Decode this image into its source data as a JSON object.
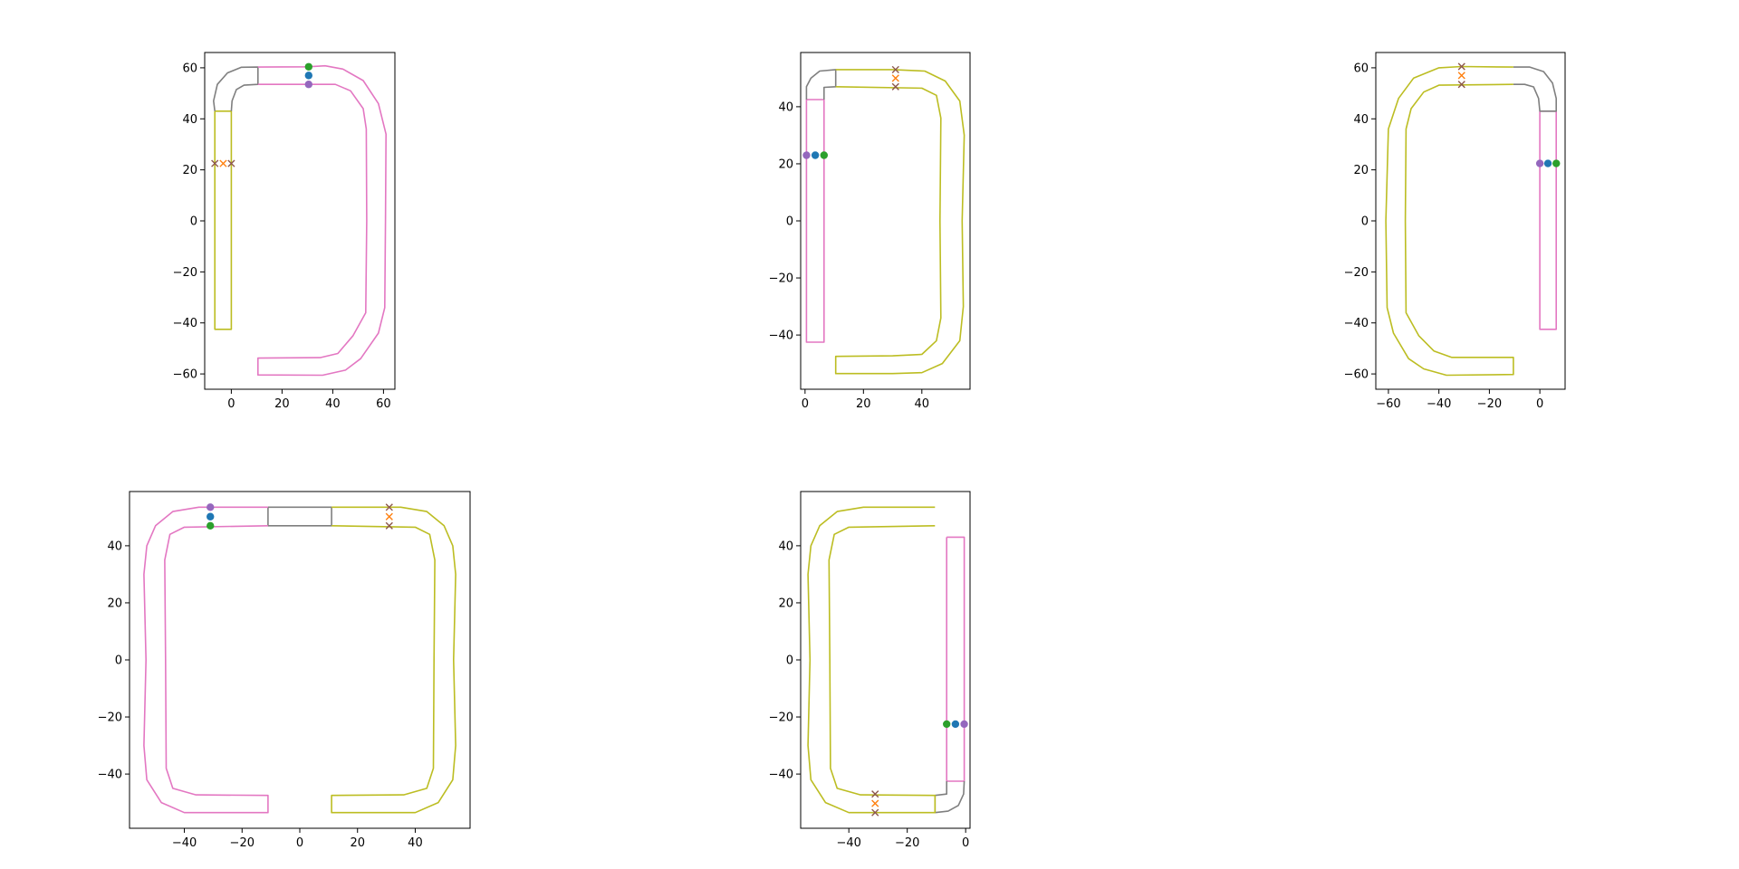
{
  "figure": {
    "colors": {
      "pink": "#e377c2",
      "olive": "#bcbd22",
      "gray": "#7f7f7f",
      "blue": "#1f77b4",
      "green": "#2ca02c",
      "purple": "#9467bd",
      "orange": "#ff7f0e",
      "brown": "#8c564b",
      "axes": "#000000",
      "background": "#ffffff"
    }
  },
  "chart_data": [
    {
      "type": "line",
      "xlim": [
        -10.5,
        64.5
      ],
      "ylim": [
        -66,
        66
      ],
      "xticks": [
        0,
        20,
        40,
        60
      ],
      "yticks": [
        -60,
        -40,
        -20,
        0,
        20,
        40,
        60
      ],
      "grid": false,
      "shapes": [
        {
          "color": "olive",
          "points": [
            [
              -6.5,
              43
            ],
            [
              0,
              43
            ],
            [
              0,
              -42.5
            ],
            [
              -6.5,
              -42.5
            ],
            [
              -6.5,
              43
            ]
          ]
        },
        {
          "color": "gray",
          "points": [
            [
              -6.5,
              43
            ],
            [
              -7,
              47
            ],
            [
              -5.5,
              53.5
            ],
            [
              -1.5,
              58
            ],
            [
              4,
              60.2
            ],
            [
              10.5,
              60.3
            ],
            [
              10.5,
              53.5
            ],
            [
              5,
              53.2
            ],
            [
              2,
              51.5
            ],
            [
              0.3,
              47
            ],
            [
              0,
              43
            ]
          ]
        },
        {
          "color": "pink",
          "points": [
            [
              10.5,
              60.3
            ],
            [
              30,
              60.4
            ],
            [
              37,
              60.8
            ],
            [
              44,
              59.5
            ],
            [
              52,
              55
            ],
            [
              58,
              46
            ],
            [
              61,
              34
            ],
            [
              60.8,
              0
            ],
            [
              60.5,
              -34
            ],
            [
              58,
              -44
            ],
            [
              51,
              -54
            ],
            [
              45,
              -58.5
            ],
            [
              36,
              -60.5
            ],
            [
              10.5,
              -60.4
            ],
            [
              10.5,
              -53.8
            ],
            [
              35,
              -53.6
            ],
            [
              42,
              -52
            ],
            [
              48,
              -45
            ],
            [
              53,
              -36
            ],
            [
              53.4,
              0
            ],
            [
              53.2,
              36
            ],
            [
              52,
              44
            ],
            [
              47,
              51
            ],
            [
              41,
              53.5
            ],
            [
              10.5,
              53.5
            ]
          ]
        }
      ],
      "markers": [
        {
          "x": 30.5,
          "y": 60.4,
          "symbol": "o",
          "color": "green"
        },
        {
          "x": 30.5,
          "y": 57,
          "symbol": "o",
          "color": "blue"
        },
        {
          "x": 30.5,
          "y": 53.5,
          "symbol": "o",
          "color": "purple"
        },
        {
          "x": -6.5,
          "y": 22.5,
          "symbol": "x",
          "color": "brown"
        },
        {
          "x": -3.2,
          "y": 22.5,
          "symbol": "x",
          "color": "orange"
        },
        {
          "x": 0,
          "y": 22.5,
          "symbol": "x",
          "color": "brown"
        }
      ]
    },
    {
      "type": "line",
      "xlim": [
        -1.5,
        56.5
      ],
      "ylim": [
        -59,
        59
      ],
      "xticks": [
        0,
        20,
        40
      ],
      "yticks": [
        -40,
        -20,
        0,
        20,
        40
      ],
      "grid": false,
      "shapes": [
        {
          "color": "pink",
          "points": [
            [
              0.5,
              42.5
            ],
            [
              6.5,
              42.5
            ],
            [
              6.5,
              -42.5
            ],
            [
              0.5,
              -42.5
            ],
            [
              0.5,
              42.5
            ]
          ]
        },
        {
          "color": "gray",
          "points": [
            [
              0.5,
              42.5
            ],
            [
              0.5,
              47
            ],
            [
              2,
              50
            ],
            [
              5,
              52.5
            ],
            [
              10.5,
              53
            ],
            [
              10.5,
              47
            ],
            [
              6.5,
              46.8
            ],
            [
              6.5,
              42.5
            ]
          ]
        },
        {
          "color": "olive",
          "points": [
            [
              10.5,
              53
            ],
            [
              30,
              53
            ],
            [
              41,
              52.5
            ],
            [
              48,
              49
            ],
            [
              53,
              42
            ],
            [
              54.5,
              30
            ],
            [
              53.8,
              0
            ],
            [
              54.2,
              -30
            ],
            [
              53,
              -42
            ],
            [
              47,
              -50
            ],
            [
              40,
              -53.2
            ],
            [
              30,
              -53.5
            ],
            [
              10.5,
              -53.5
            ],
            [
              10.5,
              -47.5
            ],
            [
              30,
              -47.3
            ],
            [
              40,
              -46.8
            ],
            [
              45,
              -42
            ],
            [
              46.5,
              -34
            ],
            [
              46.2,
              0
            ],
            [
              46.5,
              36
            ],
            [
              45,
              44
            ],
            [
              40,
              46.5
            ],
            [
              10.5,
              47
            ]
          ]
        }
      ],
      "markers": [
        {
          "x": 0.5,
          "y": 23,
          "symbol": "o",
          "color": "purple"
        },
        {
          "x": 3.5,
          "y": 23,
          "symbol": "o",
          "color": "blue"
        },
        {
          "x": 6.5,
          "y": 23,
          "symbol": "o",
          "color": "green"
        },
        {
          "x": 31,
          "y": 53,
          "symbol": "x",
          "color": "brown"
        },
        {
          "x": 31,
          "y": 50,
          "symbol": "x",
          "color": "orange"
        },
        {
          "x": 31,
          "y": 47,
          "symbol": "x",
          "color": "brown"
        }
      ]
    },
    {
      "type": "line",
      "xlim": [
        -65,
        10
      ],
      "ylim": [
        -66,
        66
      ],
      "xticks": [
        -60,
        -40,
        -20,
        0
      ],
      "yticks": [
        -60,
        -40,
        -20,
        0,
        20,
        40,
        60
      ],
      "grid": false,
      "shapes": [
        {
          "color": "pink",
          "points": [
            [
              0,
              43
            ],
            [
              6.5,
              43
            ],
            [
              6.5,
              -42.5
            ],
            [
              0,
              -42.5
            ],
            [
              0,
              43
            ]
          ]
        },
        {
          "color": "gray",
          "points": [
            [
              -10.5,
              60.3
            ],
            [
              -4,
              60.3
            ],
            [
              1.5,
              58.5
            ],
            [
              5,
              54
            ],
            [
              6.5,
              48
            ],
            [
              6.5,
              43
            ],
            [
              0,
              43
            ],
            [
              -0.5,
              48
            ],
            [
              -2.5,
              52.5
            ],
            [
              -6,
              53.5
            ],
            [
              -10.5,
              53.5
            ]
          ]
        },
        {
          "color": "olive",
          "points": [
            [
              -10.5,
              60.3
            ],
            [
              -31,
              60.5
            ],
            [
              -40,
              60
            ],
            [
              -50,
              56
            ],
            [
              -56,
              48
            ],
            [
              -60,
              36
            ],
            [
              -61,
              0
            ],
            [
              -60.5,
              -34
            ],
            [
              -58,
              -44
            ],
            [
              -52,
              -54
            ],
            [
              -46,
              -58
            ],
            [
              -37,
              -60.5
            ],
            [
              -10.5,
              -60.2
            ],
            [
              -10.5,
              -53.5
            ],
            [
              -35,
              -53.5
            ],
            [
              -42,
              -51
            ],
            [
              -48,
              -45
            ],
            [
              -53,
              -36
            ],
            [
              -53.3,
              0
            ],
            [
              -53,
              36
            ],
            [
              -51,
              44
            ],
            [
              -46,
              50.5
            ],
            [
              -40,
              53.2
            ],
            [
              -10.5,
              53.5
            ]
          ]
        }
      ],
      "markers": [
        {
          "x": 0,
          "y": 22.5,
          "symbol": "o",
          "color": "purple"
        },
        {
          "x": 3.2,
          "y": 22.5,
          "symbol": "o",
          "color": "blue"
        },
        {
          "x": 6.5,
          "y": 22.5,
          "symbol": "o",
          "color": "green"
        },
        {
          "x": -31,
          "y": 60.5,
          "symbol": "x",
          "color": "brown"
        },
        {
          "x": -31,
          "y": 57,
          "symbol": "x",
          "color": "orange"
        },
        {
          "x": -31,
          "y": 53.5,
          "symbol": "x",
          "color": "brown"
        }
      ]
    },
    {
      "type": "line",
      "xlim": [
        -59,
        59
      ],
      "ylim": [
        -59,
        59
      ],
      "xticks": [
        -40,
        -20,
        0,
        20,
        40
      ],
      "yticks": [
        -40,
        -20,
        0,
        20,
        40
      ],
      "grid": false,
      "shapes": [
        {
          "color": "gray",
          "points": [
            [
              -11,
              53.5
            ],
            [
              11,
              53.5
            ],
            [
              11,
              47
            ],
            [
              -11,
              47
            ],
            [
              -11,
              53.5
            ]
          ]
        },
        {
          "color": "pink",
          "points": [
            [
              -11,
              53.5
            ],
            [
              -35,
              53.5
            ],
            [
              -44,
              52
            ],
            [
              -50,
              47
            ],
            [
              -53,
              40
            ],
            [
              -54,
              30
            ],
            [
              -53.3,
              0
            ],
            [
              -54,
              -30
            ],
            [
              -53,
              -42
            ],
            [
              -48,
              -50
            ],
            [
              -40,
              -53.5
            ],
            [
              -11,
              -53.5
            ],
            [
              -11,
              -47.5
            ],
            [
              -36,
              -47.3
            ],
            [
              -44,
              -45
            ],
            [
              -46.3,
              -38
            ],
            [
              -46.5,
              0
            ],
            [
              -46.8,
              35
            ],
            [
              -45,
              44
            ],
            [
              -40,
              46.5
            ],
            [
              -11,
              47
            ]
          ]
        },
        {
          "color": "olive",
          "points": [
            [
              11,
              53.5
            ],
            [
              35,
              53.5
            ],
            [
              44,
              52
            ],
            [
              50,
              47
            ],
            [
              53,
              40
            ],
            [
              54,
              30
            ],
            [
              53.3,
              0
            ],
            [
              54,
              -30
            ],
            [
              53,
              -42
            ],
            [
              48,
              -50
            ],
            [
              40,
              -53.5
            ],
            [
              11,
              -53.5
            ],
            [
              11,
              -47.5
            ],
            [
              36,
              -47.3
            ],
            [
              44,
              -45
            ],
            [
              46.3,
              -38
            ],
            [
              46.5,
              0
            ],
            [
              46.8,
              35
            ],
            [
              45,
              44
            ],
            [
              40,
              46.5
            ],
            [
              11,
              47
            ]
          ]
        }
      ],
      "markers": [
        {
          "x": -31,
          "y": 53.5,
          "symbol": "o",
          "color": "purple"
        },
        {
          "x": -31,
          "y": 50.2,
          "symbol": "o",
          "color": "blue"
        },
        {
          "x": -31,
          "y": 47,
          "symbol": "o",
          "color": "green"
        },
        {
          "x": 31,
          "y": 53.5,
          "symbol": "x",
          "color": "brown"
        },
        {
          "x": 31,
          "y": 50.2,
          "symbol": "x",
          "color": "orange"
        },
        {
          "x": 31,
          "y": 47,
          "symbol": "x",
          "color": "brown"
        }
      ]
    },
    {
      "type": "line",
      "xlim": [
        -56.5,
        1.5
      ],
      "ylim": [
        -59,
        59
      ],
      "xticks": [
        -40,
        -20,
        0
      ],
      "yticks": [
        -40,
        -20,
        0,
        20,
        40
      ],
      "grid": false,
      "shapes": [
        {
          "color": "pink",
          "points": [
            [
              -6.5,
              43
            ],
            [
              -0.5,
              43
            ],
            [
              -0.5,
              -42.5
            ],
            [
              -6.5,
              -42.5
            ],
            [
              -6.5,
              43
            ]
          ]
        },
        {
          "color": "gray",
          "points": [
            [
              -6.5,
              -42.5
            ],
            [
              -6.5,
              -47
            ],
            [
              -10.5,
              -47.5
            ],
            [
              -10.5,
              -53.5
            ],
            [
              -6,
              -53
            ],
            [
              -2.5,
              -51
            ],
            [
              -0.7,
              -47
            ],
            [
              -0.5,
              -42.5
            ]
          ]
        },
        {
          "color": "olive",
          "points": [
            [
              -10.5,
              53.5
            ],
            [
              -35,
              53.5
            ],
            [
              -44,
              52
            ],
            [
              -50,
              47
            ],
            [
              -53,
              40
            ],
            [
              -54,
              30
            ],
            [
              -53.3,
              0
            ],
            [
              -54,
              -30
            ],
            [
              -53,
              -42
            ],
            [
              -48,
              -50
            ],
            [
              -40,
              -53.5
            ],
            [
              -10.5,
              -53.5
            ],
            [
              -10.5,
              -47.5
            ],
            [
              -36,
              -47.3
            ],
            [
              -44,
              -45
            ],
            [
              -46.3,
              -38
            ],
            [
              -46.5,
              0
            ],
            [
              -46.8,
              35
            ],
            [
              -45,
              44
            ],
            [
              -40,
              46.5
            ],
            [
              -10.5,
              47
            ]
          ]
        }
      ],
      "markers": [
        {
          "x": -6.5,
          "y": -22.5,
          "symbol": "o",
          "color": "green"
        },
        {
          "x": -3.5,
          "y": -22.5,
          "symbol": "o",
          "color": "blue"
        },
        {
          "x": -0.5,
          "y": -22.5,
          "symbol": "o",
          "color": "purple"
        },
        {
          "x": -31,
          "y": -47,
          "symbol": "x",
          "color": "brown"
        },
        {
          "x": -31,
          "y": -50.3,
          "symbol": "x",
          "color": "orange"
        },
        {
          "x": -31,
          "y": -53.5,
          "symbol": "x",
          "color": "brown"
        }
      ]
    }
  ]
}
